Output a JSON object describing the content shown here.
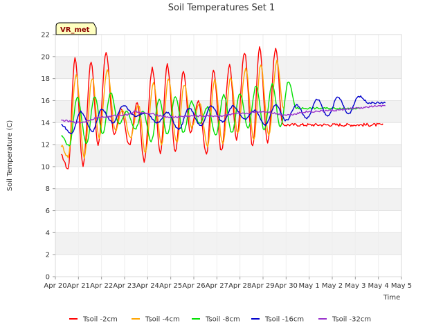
{
  "chart_data": {
    "type": "line",
    "title": "Soil Temperatures Set 1",
    "xlabel": "Time",
    "ylabel": "Soil Temperature (C)",
    "badge": "VR_met",
    "ylim": [
      0,
      22
    ],
    "yticks": [
      0,
      2,
      4,
      6,
      8,
      10,
      12,
      14,
      16,
      18,
      20,
      22
    ],
    "xlim": [
      0,
      15
    ],
    "xticks": [
      {
        "x": 0,
        "label": "Apr 20"
      },
      {
        "x": 1,
        "label": "Apr 21"
      },
      {
        "x": 2,
        "label": "Apr 22"
      },
      {
        "x": 3,
        "label": "Apr 23"
      },
      {
        "x": 4,
        "label": "Apr 24"
      },
      {
        "x": 5,
        "label": "Apr 25"
      },
      {
        "x": 6,
        "label": "Apr 26"
      },
      {
        "x": 7,
        "label": "Apr 27"
      },
      {
        "x": 8,
        "label": "Apr 28"
      },
      {
        "x": 9,
        "label": "Apr 29"
      },
      {
        "x": 10,
        "label": "Apr 30"
      },
      {
        "x": 11,
        "label": "May 1"
      },
      {
        "x": 12,
        "label": "May 2"
      },
      {
        "x": 13,
        "label": "May 3"
      },
      {
        "x": 14,
        "label": "May 4"
      },
      {
        "x": 15,
        "label": "May 5"
      }
    ],
    "grid": true,
    "legend_position": "bottom",
    "series": [
      {
        "name": "Tsoil -2cm",
        "color": "#ff0000",
        "x": [
          0.25,
          0.55,
          0.85,
          1.2,
          1.55,
          1.85,
          2.2,
          2.55,
          2.85,
          3.2,
          3.55,
          3.85,
          4.2,
          4.55,
          4.85,
          5.2,
          5.55,
          5.85,
          6.2,
          6.55,
          6.85,
          7.2,
          7.55,
          7.85,
          8.2,
          8.55,
          8.85,
          9.2,
          9.55,
          9.85,
          10.2,
          10.55,
          10.85,
          11.2,
          11.55,
          11.85,
          12.2,
          12.55,
          12.85,
          13.2,
          13.55,
          13.85,
          14.2
        ],
        "y": [
          11.0,
          9.8,
          19.9,
          10.1,
          19.6,
          11.9,
          20.4,
          12.8,
          15.3,
          11.9,
          15.8,
          10.5,
          18.9,
          11.3,
          19.3,
          11.4,
          18.6,
          13.2,
          15.9,
          11.1,
          18.7,
          11.4,
          19.2,
          12.5,
          20.3,
          11.8,
          20.8,
          12.2,
          20.8,
          13.8,
          13.8,
          13.8,
          13.8,
          13.8,
          13.8,
          13.8,
          13.8,
          13.8,
          13.8,
          13.8,
          13.8,
          13.8,
          13.8
        ]
      },
      {
        "name": "Tsoil -4cm",
        "color": "#ffa500",
        "x": [
          0.25,
          0.55,
          0.9,
          1.25,
          1.6,
          1.9,
          2.25,
          2.6,
          2.9,
          3.25,
          3.6,
          3.9,
          4.25,
          4.6,
          4.9,
          5.25,
          5.6,
          5.9,
          6.25,
          6.6,
          6.9,
          7.25,
          7.6,
          7.9,
          8.25,
          8.6,
          8.9,
          9.25,
          9.6,
          9.9
        ],
        "y": [
          11.9,
          10.9,
          18.3,
          10.9,
          18.1,
          12.6,
          18.8,
          13.3,
          15.2,
          12.6,
          15.6,
          11.3,
          17.6,
          12.0,
          18.0,
          12.2,
          17.5,
          13.6,
          15.7,
          11.9,
          17.9,
          12.1,
          18.1,
          13.0,
          18.9,
          12.5,
          19.2,
          12.8,
          19.6,
          15.2
        ]
      },
      {
        "name": "Tsoil -8cm",
        "color": "#00e000",
        "x": [
          0.25,
          0.6,
          0.95,
          1.35,
          1.7,
          2.05,
          2.4,
          2.75,
          3.1,
          3.45,
          3.8,
          4.15,
          4.5,
          4.85,
          5.2,
          5.55,
          5.9,
          6.25,
          6.6,
          6.95,
          7.3,
          7.65,
          8.0,
          8.35,
          8.7,
          9.05,
          9.4,
          9.75,
          10.1,
          10.45,
          10.8,
          11.15,
          11.5,
          11.85,
          12.2,
          12.55,
          12.9,
          13.2
        ],
        "y": [
          12.8,
          11.9,
          16.3,
          12.1,
          16.4,
          13.0,
          16.7,
          13.9,
          15.0,
          13.4,
          15.1,
          12.3,
          16.1,
          12.9,
          16.4,
          13.1,
          15.9,
          13.9,
          15.4,
          12.9,
          16.5,
          13.1,
          16.6,
          13.5,
          17.3,
          13.3,
          17.5,
          13.6,
          17.7,
          15.3,
          15.3,
          15.3,
          15.3,
          15.3,
          15.3,
          15.3,
          15.3,
          15.3
        ]
      },
      {
        "name": "Tsoil -16cm",
        "color": "#0000cc",
        "x": [
          0.25,
          0.7,
          1.1,
          1.6,
          2.0,
          2.5,
          2.95,
          3.45,
          3.9,
          4.4,
          4.85,
          5.35,
          5.8,
          6.3,
          6.75,
          7.25,
          7.7,
          8.2,
          8.65,
          9.1,
          9.55,
          10.0,
          10.45,
          10.9,
          11.35,
          11.8,
          12.25,
          12.7,
          13.15,
          13.6,
          14.1,
          14.3
        ],
        "y": [
          13.8,
          13.0,
          15.0,
          13.2,
          15.2,
          14.0,
          15.6,
          14.6,
          14.9,
          14.0,
          14.9,
          13.4,
          15.3,
          13.7,
          15.5,
          14.1,
          15.5,
          14.3,
          15.1,
          13.8,
          15.6,
          14.2,
          15.6,
          14.4,
          16.1,
          14.6,
          16.3,
          14.8,
          16.4,
          15.8,
          15.8,
          15.8
        ]
      },
      {
        "name": "Tsoil -32cm",
        "color": "#9932cc",
        "x": [
          0.25,
          1.0,
          2.0,
          3.0,
          3.5,
          4.0,
          5.0,
          6.0,
          7.0,
          8.0,
          9.0,
          10.0,
          11.0,
          12.0,
          13.0,
          14.0,
          14.3
        ],
        "y": [
          14.2,
          14.0,
          14.5,
          14.7,
          15.0,
          14.8,
          14.5,
          14.6,
          14.6,
          14.8,
          15.0,
          14.7,
          15.0,
          15.1,
          15.3,
          15.5,
          15.5
        ]
      }
    ]
  }
}
